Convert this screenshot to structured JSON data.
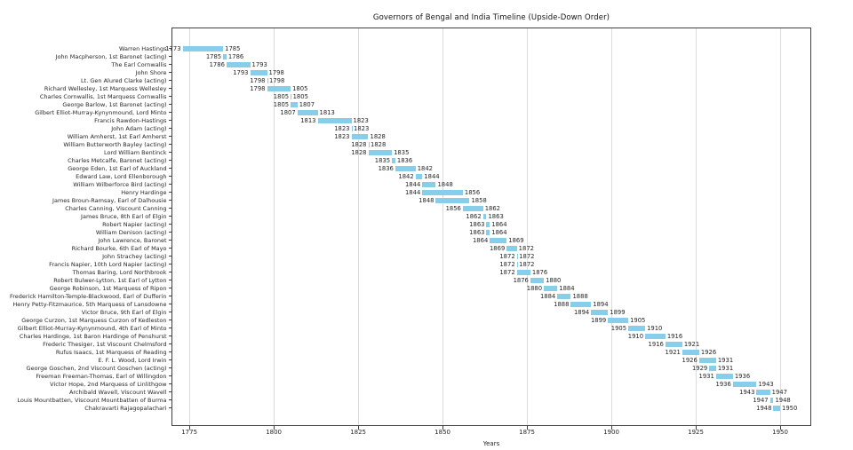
{
  "chart_data": {
    "type": "bar",
    "variant": "horizontal-gantt-timeline",
    "title": "Governors of Bengal and India Timeline (Upside-Down Order)",
    "xlabel": "Years",
    "x_ticks": [
      1775,
      1800,
      1825,
      1850,
      1875,
      1900,
      1925,
      1950
    ],
    "xlim": [
      1769.7,
      1959.2
    ],
    "grid": "vertical",
    "legend": "none",
    "bar_color": "#87ceeb",
    "text_color": "#262626",
    "grid_color": "#dcdcdc",
    "spine_color": "#3f3f3f",
    "rows": [
      {
        "name": "Warren Hastings",
        "start": 1773,
        "end": 1785
      },
      {
        "name": "John Macpherson, 1st Baronet (acting)",
        "start": 1785,
        "end": 1786
      },
      {
        "name": "The Earl Cornwallis",
        "start": 1786,
        "end": 1793
      },
      {
        "name": "John Shore",
        "start": 1793,
        "end": 1798
      },
      {
        "name": "Lt. Gen Alured Clarke (acting)",
        "start": 1798,
        "end": 1798
      },
      {
        "name": "Richard Wellesley, 1st Marquess Wellesley",
        "start": 1798,
        "end": 1805
      },
      {
        "name": "Charles Cornwallis, 1st Marquess Cornwallis",
        "start": 1805,
        "end": 1805
      },
      {
        "name": "George Barlow, 1st Baronet (acting)",
        "start": 1805,
        "end": 1807
      },
      {
        "name": "Gilbert Elliot-Murray-Kynynmound, Lord Minto",
        "start": 1807,
        "end": 1813
      },
      {
        "name": "Francis Rawdon-Hastings",
        "start": 1813,
        "end": 1823
      },
      {
        "name": "John Adam (acting)",
        "start": 1823,
        "end": 1823
      },
      {
        "name": "William Amherst, 1st Earl Amherst",
        "start": 1823,
        "end": 1828
      },
      {
        "name": "William Butterworth Bayley (acting)",
        "start": 1828,
        "end": 1828
      },
      {
        "name": "Lord William Bentinck",
        "start": 1828,
        "end": 1835
      },
      {
        "name": "Charles Metcalfe, Baronet (acting)",
        "start": 1835,
        "end": 1836
      },
      {
        "name": "George Eden, 1st Earl of Auckland",
        "start": 1836,
        "end": 1842
      },
      {
        "name": "Edward Law, Lord Ellenborough",
        "start": 1842,
        "end": 1844
      },
      {
        "name": "William Wilberforce Bird (acting)",
        "start": 1844,
        "end": 1848
      },
      {
        "name": "Henry Hardinge",
        "start": 1844,
        "end": 1856
      },
      {
        "name": "James Broun-Ramsay, Earl of Dalhousie",
        "start": 1848,
        "end": 1858
      },
      {
        "name": "Charles Canning, Viscount Canning",
        "start": 1856,
        "end": 1862
      },
      {
        "name": "James Bruce, 8th Earl of Elgin",
        "start": 1862,
        "end": 1863
      },
      {
        "name": "Robert Napier (acting)",
        "start": 1863,
        "end": 1864
      },
      {
        "name": "William Denison (acting)",
        "start": 1863,
        "end": 1864
      },
      {
        "name": "John Lawrence, Baronet",
        "start": 1864,
        "end": 1869
      },
      {
        "name": "Richard Bourke, 6th Earl of Mayo",
        "start": 1869,
        "end": 1872
      },
      {
        "name": "John Strachey (acting)",
        "start": 1872,
        "end": 1872
      },
      {
        "name": "Francis Napier, 10th Lord Napier (acting)",
        "start": 1872,
        "end": 1872
      },
      {
        "name": "Thomas Baring, Lord Northbrook",
        "start": 1872,
        "end": 1876
      },
      {
        "name": "Robert Bulwer-Lytton, 1st Earl of Lytton",
        "start": 1876,
        "end": 1880
      },
      {
        "name": "George Robinson, 1st Marquess of Ripon",
        "start": 1880,
        "end": 1884
      },
      {
        "name": "Frederick Hamilton-Temple-Blackwood, Earl of Dufferin",
        "start": 1884,
        "end": 1888
      },
      {
        "name": "Henry Petty-Fitzmaurice, 5th Marquess of Lansdowne",
        "start": 1888,
        "end": 1894
      },
      {
        "name": "Victor Bruce, 9th Earl of Elgin",
        "start": 1894,
        "end": 1899
      },
      {
        "name": "George Curzon, 1st Marquess Curzon of Kedleston",
        "start": 1899,
        "end": 1905
      },
      {
        "name": "Gilbert Elliot-Murray-Kynynmound, 4th Earl of Minto",
        "start": 1905,
        "end": 1910
      },
      {
        "name": "Charles Hardinge, 1st Baron Hardinge of Penshurst",
        "start": 1910,
        "end": 1916
      },
      {
        "name": "Frederic Thesiger, 1st Viscount Chelmsford",
        "start": 1916,
        "end": 1921
      },
      {
        "name": "Rufus Isaacs, 1st Marquess of Reading",
        "start": 1921,
        "end": 1926
      },
      {
        "name": "E. F. L. Wood, Lord Irwin",
        "start": 1926,
        "end": 1931
      },
      {
        "name": "George Goschen, 2nd Viscount Goschen (acting)",
        "start": 1929,
        "end": 1931
      },
      {
        "name": "Freeman Freeman-Thomas, Earl of Willingdon",
        "start": 1931,
        "end": 1936
      },
      {
        "name": "Victor Hope, 2nd Marquess of Linlithgow",
        "start": 1936,
        "end": 1943
      },
      {
        "name": "Archibald Wavell, Viscount Wavell",
        "start": 1943,
        "end": 1947
      },
      {
        "name": "Louis Mountbatten, Viscount Mountbatten of Burma",
        "start": 1947,
        "end": 1948
      },
      {
        "name": "Chakravarti Rajagopalachari",
        "start": 1948,
        "end": 1950
      }
    ]
  }
}
